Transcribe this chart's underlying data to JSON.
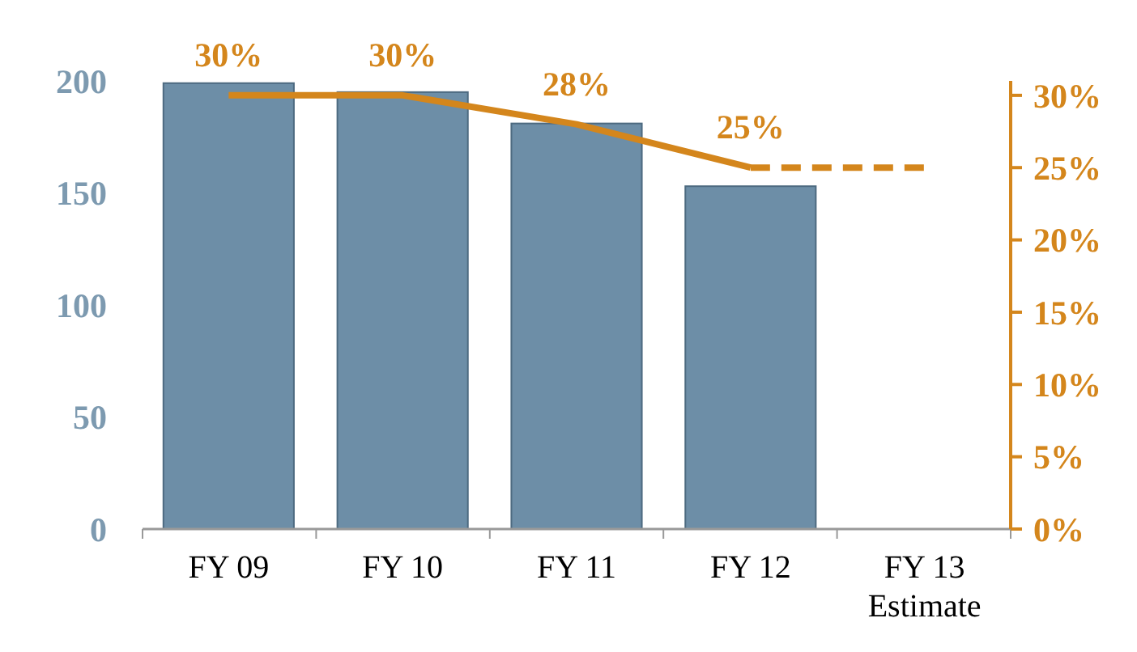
{
  "chart_data": {
    "type": "bar",
    "categories": [
      "FY 09",
      "FY 10",
      "FY 11",
      "FY 12",
      "FY 13\nEstimate"
    ],
    "series": [
      {
        "color": "#6d8ea7",
        "values": [
          199,
          195,
          181,
          153,
          null
        ]
      },
      {
        "type": "line",
        "axis": "y2",
        "color": "#d4861c",
        "line_style": "solid",
        "values": [
          30,
          30,
          28,
          25,
          null
        ],
        "value_labels": [
          "30%",
          "30%",
          "28%",
          "25%",
          null
        ]
      },
      {
        "type": "line",
        "axis": "y2",
        "color": "#d4861c",
        "line_style": "dashed",
        "values": [
          null,
          null,
          null,
          25,
          25
        ]
      }
    ],
    "ylim": [
      0,
      200
    ],
    "yticks": [
      0,
      50,
      100,
      150,
      200
    ],
    "y2lim": [
      0,
      31
    ],
    "y2ticks": [
      {
        "value": 0,
        "label": "0%"
      },
      {
        "value": 5,
        "label": "5%"
      },
      {
        "value": 10,
        "label": "10%"
      },
      {
        "value": 15,
        "label": "15%"
      },
      {
        "value": 20,
        "label": "20%"
      },
      {
        "value": 25,
        "label": "25%"
      },
      {
        "value": 30,
        "label": "30%"
      }
    ],
    "grid": false,
    "marker": "none"
  }
}
